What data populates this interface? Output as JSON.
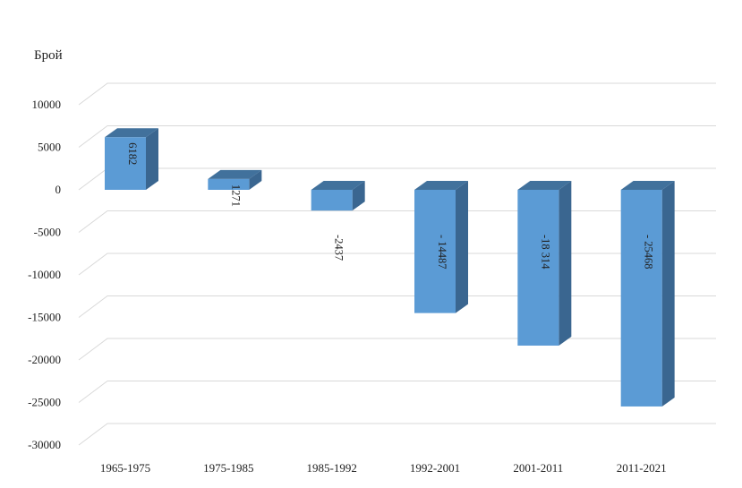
{
  "chart_data": {
    "type": "bar",
    "style": "3d-column",
    "ylabel": "Брой",
    "xlabel": "",
    "title": "",
    "categories": [
      "1965-1975",
      "1975-1985",
      "1985-1992",
      "1992-2001",
      "2001-2011",
      "2011-2021"
    ],
    "values": [
      6182,
      1271,
      -2437,
      -14487,
      -18314,
      -25468
    ],
    "data_labels": [
      "6182",
      "1271",
      "-2437",
      "- 14487",
      "-18 314",
      "- 25468"
    ],
    "y_ticks": [
      "10000",
      "5000",
      "0",
      "-5000",
      "-10000",
      "-15000",
      "-20000",
      "-25000",
      "-30000"
    ],
    "ylim": [
      -30000,
      10000
    ],
    "grid": true,
    "legend": "none",
    "colors": {
      "front": "#5b9bd5",
      "side": "#3a6690",
      "top": "#41719c",
      "grid": "#d9d9d9"
    }
  }
}
